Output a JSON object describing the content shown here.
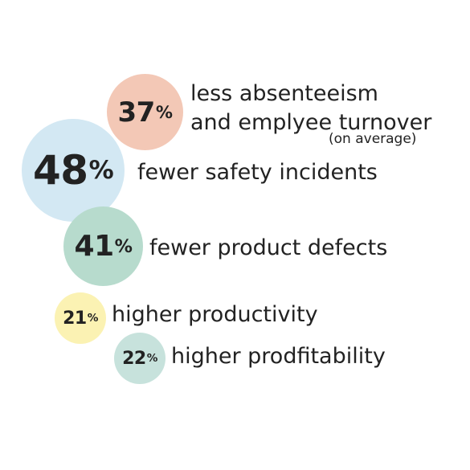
{
  "chart_data": {
    "type": "bubble",
    "unit": "%",
    "colors": {
      "peach": "#f3c8b6",
      "light_blue": "#d3e8f3",
      "sage": "#b7dbcd",
      "yellow": "#fbf2b3",
      "mint": "#c7e2dc",
      "text": "#222222"
    },
    "items": [
      {
        "value": 37,
        "label": "%",
        "value_text": "37",
        "caption_1": "less absenteeism",
        "caption_2": "and emplyee turnover",
        "note": "(on average)"
      },
      {
        "value": 48,
        "label": "%",
        "value_text": "48",
        "caption": "fewer safety incidents"
      },
      {
        "value": 41,
        "label": "%",
        "value_text": "41",
        "caption": "fewer product defects"
      },
      {
        "value": 21,
        "label": "%",
        "value_text": "21",
        "caption": "higher productivity"
      },
      {
        "value": 22,
        "label": "%",
        "value_text": "22",
        "caption": "higher prodfitability"
      }
    ]
  }
}
